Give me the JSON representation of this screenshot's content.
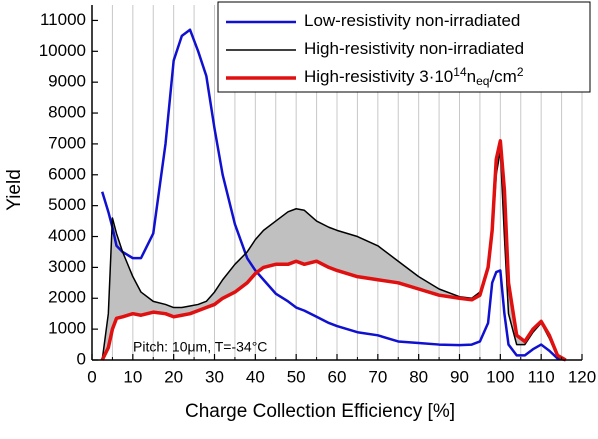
{
  "chart_data": {
    "type": "line",
    "xlabel": "Charge Collection Efficiency [%]",
    "ylabel": "Yield",
    "annotation": "Pitch: 10μm, T=-34°C",
    "annotation_color": "#1010d0",
    "xlim": [
      0,
      120
    ],
    "ylim": [
      0,
      11500
    ],
    "xticks": [
      0,
      10,
      20,
      30,
      40,
      50,
      60,
      70,
      80,
      90,
      100,
      110,
      120
    ],
    "xminor": [
      5,
      15,
      25,
      35,
      45,
      55,
      65,
      75,
      85,
      95,
      105,
      115
    ],
    "yticks": [
      0,
      1000,
      2000,
      3000,
      4000,
      5000,
      6000,
      7000,
      8000,
      9000,
      10000,
      11000
    ],
    "grid": true,
    "legend": "upper right",
    "fill_between": [
      1,
      2
    ],
    "fill_color": "#c0c0c0",
    "x": [
      2.5,
      4,
      5,
      6,
      7.5,
      10,
      12,
      15,
      18,
      20,
      22,
      24,
      26,
      28,
      30,
      32,
      35,
      38,
      40,
      42,
      45,
      48,
      50,
      52,
      55,
      58,
      60,
      65,
      70,
      75,
      80,
      85,
      90,
      93,
      95,
      97,
      98,
      99,
      100,
      101,
      102,
      104,
      106,
      108,
      110,
      112,
      114,
      116
    ],
    "series": [
      {
        "name": [
          "Low-resistivity  non-irradiated"
        ],
        "name_style": [
          "normal"
        ],
        "color": "#1010d0",
        "width": 2.5,
        "values": [
          5450,
          4800,
          4300,
          3700,
          3500,
          3300,
          3300,
          4100,
          7000,
          9700,
          10500,
          10700,
          10000,
          9200,
          7500,
          6000,
          4400,
          3300,
          2900,
          2600,
          2150,
          1900,
          1700,
          1600,
          1400,
          1200,
          1100,
          900,
          800,
          600,
          550,
          500,
          480,
          500,
          600,
          1200,
          2500,
          2850,
          2900,
          1500,
          500,
          150,
          150,
          350,
          500,
          300,
          50,
          0
        ]
      },
      {
        "name": [
          "High-resistivity non-irradiated"
        ],
        "name_style": [
          "normal"
        ],
        "color": "#000000",
        "width": 1.5,
        "values": [
          0,
          1500,
          4600,
          4100,
          3500,
          2700,
          2200,
          1900,
          1800,
          1700,
          1700,
          1750,
          1800,
          1900,
          2200,
          2600,
          3100,
          3500,
          3900,
          4200,
          4500,
          4800,
          4900,
          4850,
          4500,
          4300,
          4200,
          4000,
          3700,
          3200,
          2700,
          2300,
          2050,
          2000,
          2200,
          3000,
          4000,
          6000,
          6800,
          4000,
          1500,
          500,
          500,
          900,
          1200,
          700,
          100,
          0
        ]
      },
      {
        "name": [
          "High-resistivity  3·10",
          "14",
          "n",
          "eq",
          "/cm",
          "2"
        ],
        "name_style": [
          "normal",
          "sup",
          "normal",
          "sub",
          "normal",
          "sup"
        ],
        "color": "#e01010",
        "width": 3.5,
        "values": [
          0,
          400,
          1000,
          1350,
          1400,
          1500,
          1450,
          1550,
          1500,
          1400,
          1450,
          1500,
          1600,
          1700,
          1800,
          2000,
          2200,
          2500,
          2800,
          3000,
          3100,
          3100,
          3200,
          3100,
          3200,
          3000,
          2900,
          2700,
          2600,
          2500,
          2300,
          2100,
          2000,
          1950,
          2100,
          3000,
          4200,
          6500,
          7100,
          5500,
          2500,
          800,
          600,
          1000,
          1250,
          800,
          150,
          0
        ]
      }
    ]
  }
}
